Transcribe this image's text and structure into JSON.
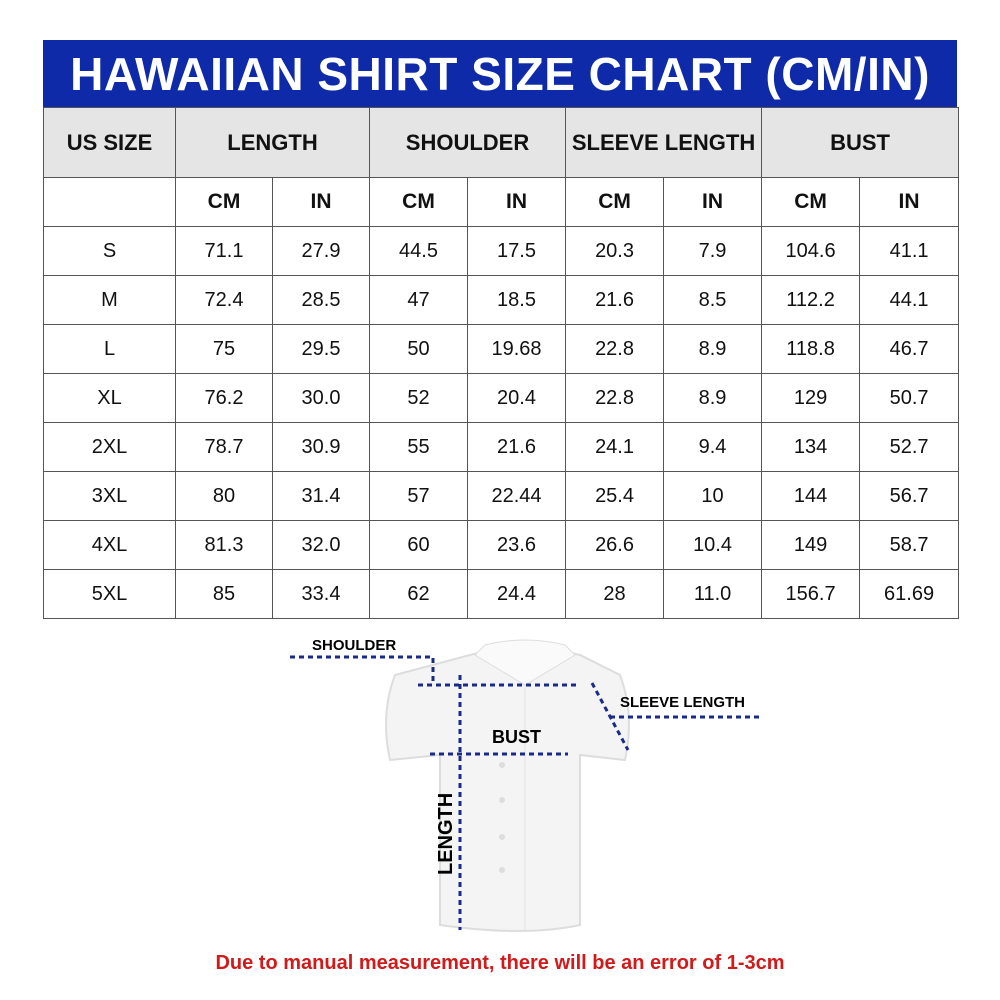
{
  "title": "HAWAIIAN SHIRT SIZE CHART (CM/IN)",
  "headers": {
    "size": "US SIZE",
    "length": "LENGTH",
    "shoulder": "SHOULDER",
    "sleeve": "SLEEVE LENGTH",
    "bust": "BUST"
  },
  "units": [
    "CM",
    "IN",
    "CM",
    "IN",
    "CM",
    "IN",
    "CM",
    "IN"
  ],
  "rows": [
    [
      "S",
      "71.1",
      "27.9",
      "44.5",
      "17.5",
      "20.3",
      "7.9",
      "104.6",
      "41.1"
    ],
    [
      "M",
      "72.4",
      "28.5",
      "47",
      "18.5",
      "21.6",
      "8.5",
      "112.2",
      "44.1"
    ],
    [
      "L",
      "75",
      "29.5",
      "50",
      "19.68",
      "22.8",
      "8.9",
      "118.8",
      "46.7"
    ],
    [
      "XL",
      "76.2",
      "30.0",
      "52",
      "20.4",
      "22.8",
      "8.9",
      "129",
      "50.7"
    ],
    [
      "2XL",
      "78.7",
      "30.9",
      "55",
      "21.6",
      "24.1",
      "9.4",
      "134",
      "52.7"
    ],
    [
      "3XL",
      "80",
      "31.4",
      "57",
      "22.44",
      "25.4",
      "10",
      "144",
      "56.7"
    ],
    [
      "4XL",
      "81.3",
      "32.0",
      "60",
      "23.6",
      "26.6",
      "10.4",
      "149",
      "58.7"
    ],
    [
      "5XL",
      "85",
      "33.4",
      "62",
      "24.4",
      "28",
      "11.0",
      "156.7",
      "61.69"
    ]
  ],
  "diagram": {
    "shoulder": "SHOULDER",
    "sleeve": "SLEEVE LENGTH",
    "bust": "BUST",
    "length": "LENGTH"
  },
  "note": "Due to manual measurement, there will be an error of 1-3cm",
  "colors": {
    "title_bg": "#0f2aa8",
    "header_bg": "#e5e5e5",
    "measure_line": "#1a2a8a",
    "note": "#d11a1a"
  }
}
